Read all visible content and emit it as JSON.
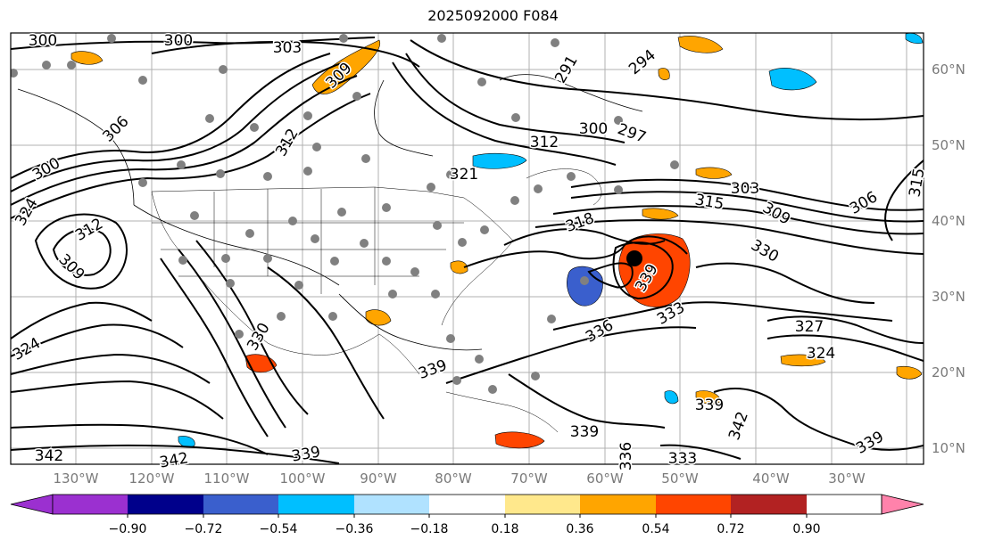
{
  "title": "2025092000 F084",
  "lon_labels": [
    "130°W",
    "120°W",
    "110°W",
    "100°W",
    "90°W",
    "80°W",
    "70°W",
    "60°W",
    "50°W",
    "40°W",
    "30°W"
  ],
  "lat_labels": [
    "60°N",
    "50°N",
    "40°N",
    "30°N",
    "20°N",
    "10°N"
  ],
  "contour_labels": [
    "300",
    "300",
    "303",
    "309",
    "312",
    "306",
    "300",
    "324",
    "312",
    "309",
    "321",
    "300",
    "297",
    "294",
    "291",
    "318",
    "315",
    "303",
    "309",
    "306",
    "315",
    "312",
    "330",
    "327",
    "324",
    "336",
    "333",
    "339",
    "339",
    "342",
    "339",
    "342",
    "342",
    "339",
    "333",
    "336",
    "324",
    "330",
    "339",
    "339"
  ],
  "colorbar": {
    "ticks": [
      "−0.90",
      "−0.72",
      "−0.54",
      "−0.36",
      "−0.18",
      "0.18",
      "0.36",
      "0.54",
      "0.72",
      "0.90"
    ],
    "colors": [
      "#9b30d0",
      "#00008b",
      "#3a5fcd",
      "#00bfff",
      "#b0e2ff",
      "#ffffff",
      "#ffe88c",
      "#ffa500",
      "#ff4500",
      "#b22222",
      "#ff82ab"
    ]
  }
}
